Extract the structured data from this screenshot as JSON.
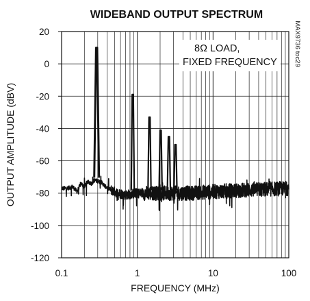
{
  "chart_data": {
    "type": "line",
    "title": "WIDEBAND OUTPUT SPECTRUM",
    "xlabel": "FREQUENCY (MHz)",
    "ylabel": "OUTPUT AMPLITUDE (dBV)",
    "xscale": "log",
    "xlim": [
      0.1,
      100
    ],
    "ylim": [
      -120,
      20
    ],
    "x_ticks": [
      0.1,
      1,
      10,
      100
    ],
    "x_tick_labels": [
      "0.1",
      "1",
      "10",
      "100"
    ],
    "y_ticks": [
      20,
      0,
      -20,
      -40,
      -60,
      -80,
      -100,
      -120
    ],
    "y_tick_labels": [
      "20",
      "0",
      "-20",
      "-40",
      "-60",
      "-80",
      "-100",
      "-120"
    ],
    "grid": true,
    "annotation_lines": [
      "8Ω LOAD,",
      "FIXED FREQUENCY"
    ],
    "side_id": "MAX9736 toc29",
    "line_color": "#111111",
    "noise_floor_dbv": -80,
    "series": [
      {
        "peaks": [
          {
            "x": 0.29,
            "y": 10
          },
          {
            "x": 0.87,
            "y": -19
          },
          {
            "x": 1.45,
            "y": -33
          },
          {
            "x": 2.03,
            "y": -41
          },
          {
            "x": 2.61,
            "y": -45
          },
          {
            "x": 3.19,
            "y": -50
          }
        ],
        "baseline": [
          {
            "x": 0.1,
            "y": -77
          },
          {
            "x": 0.12,
            "y": -77
          },
          {
            "x": 0.14,
            "y": -76
          },
          {
            "x": 0.16,
            "y": -79
          },
          {
            "x": 0.18,
            "y": -74
          },
          {
            "x": 0.2,
            "y": -76
          },
          {
            "x": 0.22,
            "y": -73
          },
          {
            "x": 0.25,
            "y": -74
          },
          {
            "x": 0.27,
            "y": -72
          },
          {
            "x": 0.33,
            "y": -73
          },
          {
            "x": 0.38,
            "y": -76
          },
          {
            "x": 0.45,
            "y": -78
          },
          {
            "x": 0.55,
            "y": -80
          },
          {
            "x": 0.7,
            "y": -81
          },
          {
            "x": 1,
            "y": -80
          },
          {
            "x": 2,
            "y": -80
          },
          {
            "x": 5,
            "y": -80
          },
          {
            "x": 10,
            "y": -79
          },
          {
            "x": 30,
            "y": -78
          },
          {
            "x": 100,
            "y": -77
          }
        ]
      }
    ]
  }
}
